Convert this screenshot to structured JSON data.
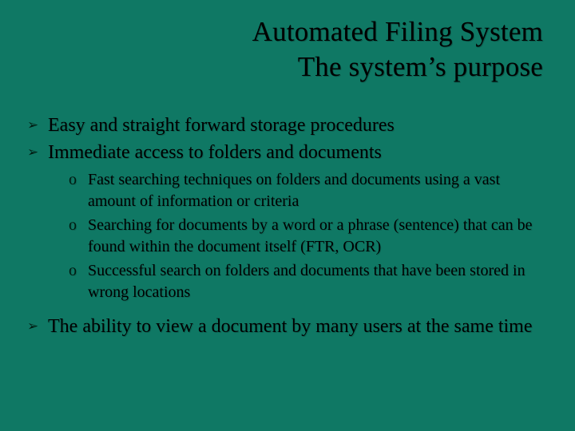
{
  "background_color": "#0f7864",
  "text_color": "#000000",
  "title": {
    "line1": "Automated Filing System",
    "line2": "The system’s purpose",
    "fontsize": 35,
    "align": "right"
  },
  "bullet_marker_glyph": "➢",
  "bullet_marker_color": "#001a10",
  "sub_marker_glyph": "o",
  "sub_marker_color": "#001a10",
  "bullets": [
    {
      "text": "Easy and straight forward storage procedures"
    },
    {
      "text": "Immediate access to folders and documents",
      "subs": [
        "Fast searching techniques on folders and documents using a vast amount of information or criteria",
        "Searching for documents by a word or a phrase (sentence) that can be found within the document itself (FTR, OCR)",
        "Successful search on folders and documents that have been stored in wrong locations"
      ]
    },
    {
      "text": "The ability to view a document by many users at the same time"
    }
  ],
  "body_fontsize": 24,
  "sub_fontsize": 20
}
